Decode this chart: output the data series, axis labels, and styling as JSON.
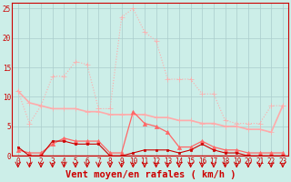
{
  "xlabel": "Vent moyen/en rafales ( km/h )",
  "background_color": "#cceee8",
  "grid_color": "#aacccc",
  "xlim": [
    -0.5,
    23.5
  ],
  "ylim": [
    0,
    26
  ],
  "yticks": [
    0,
    5,
    10,
    15,
    20,
    25
  ],
  "xticks": [
    0,
    1,
    2,
    3,
    4,
    5,
    6,
    7,
    8,
    9,
    10,
    11,
    12,
    13,
    14,
    15,
    16,
    17,
    18,
    19,
    20,
    21,
    22,
    23
  ],
  "series": [
    {
      "name": "rafales_dotted",
      "color": "#ffaaaa",
      "marker": "+",
      "markersize": 4,
      "linewidth": 0.8,
      "linestyle": "dotted",
      "values": [
        11.0,
        5.5,
        8.5,
        13.5,
        13.5,
        16.0,
        15.5,
        8.0,
        8.0,
        23.5,
        25.0,
        21.0,
        19.5,
        13.0,
        13.0,
        13.0,
        10.5,
        10.5,
        6.0,
        5.5,
        5.5,
        5.5,
        8.5,
        8.5
      ]
    },
    {
      "name": "vent_plat",
      "color": "#ffaaaa",
      "marker": "+",
      "markersize": 4,
      "linewidth": 1.2,
      "linestyle": "solid",
      "values": [
        11.0,
        9.0,
        8.5,
        8.0,
        8.0,
        8.0,
        7.5,
        7.5,
        7.0,
        7.0,
        7.0,
        7.0,
        6.5,
        6.5,
        6.0,
        6.0,
        5.5,
        5.5,
        5.0,
        5.0,
        4.5,
        4.5,
        4.0,
        8.5
      ]
    },
    {
      "name": "rafales_medium",
      "color": "#ff6666",
      "marker": "^",
      "markersize": 3,
      "linewidth": 0.9,
      "linestyle": "solid",
      "values": [
        1.0,
        0.5,
        0.5,
        2.0,
        3.0,
        2.5,
        2.5,
        2.5,
        0.5,
        0.5,
        7.5,
        5.5,
        5.0,
        4.0,
        1.5,
        1.5,
        2.5,
        1.5,
        1.0,
        1.0,
        0.5,
        0.5,
        0.5,
        0.5
      ]
    },
    {
      "name": "vent_dark",
      "color": "#cc0000",
      "marker": "s",
      "markersize": 2,
      "linewidth": 0.8,
      "linestyle": "solid",
      "values": [
        1.5,
        0.0,
        0.0,
        2.5,
        2.5,
        2.0,
        2.0,
        2.0,
        0.0,
        0.0,
        0.5,
        1.0,
        1.0,
        1.0,
        0.5,
        1.0,
        2.0,
        1.0,
        0.5,
        0.5,
        0.0,
        0.0,
        0.0,
        0.0
      ]
    }
  ],
  "tick_color": "#cc0000",
  "xlabel_color": "#cc0000",
  "tick_fontsize": 5.5,
  "xlabel_fontsize": 7.5
}
